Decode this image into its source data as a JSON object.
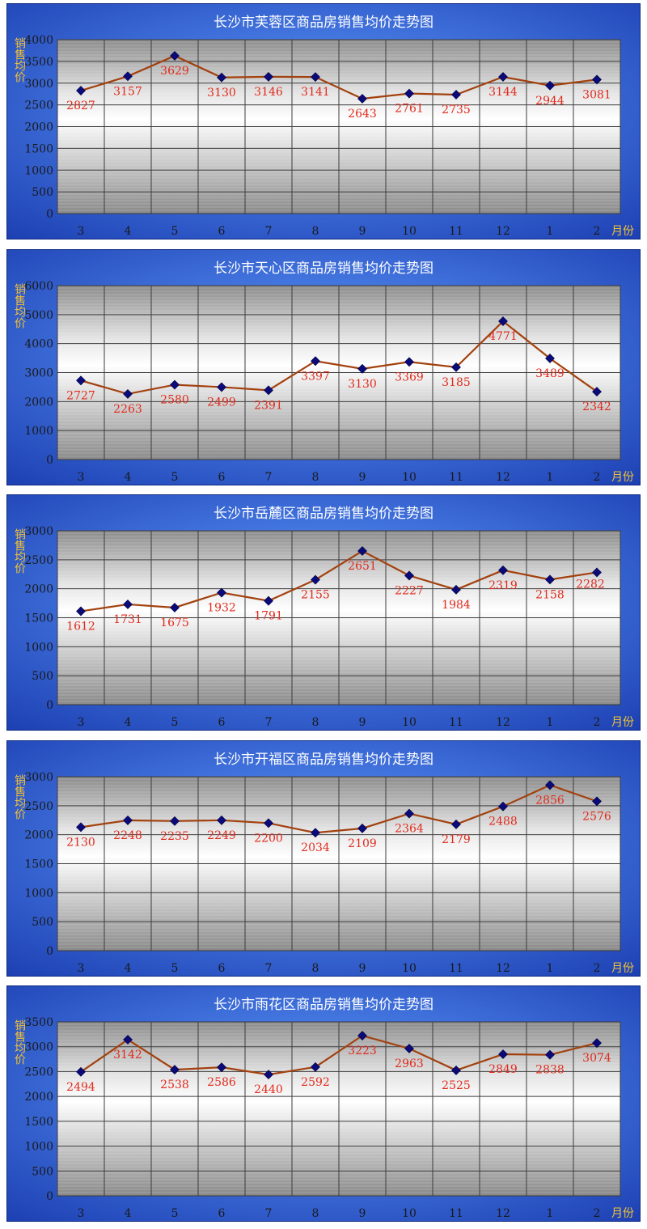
{
  "axis_unit_x": "月份",
  "axis_label_y": "销售均价",
  "colors": {
    "frame_dark": "#1c3fb2",
    "frame_light": "#5f9cff",
    "line": "#a3410e",
    "marker": "#0a0a78",
    "value_label": "#e22a1c",
    "title_text": "#ffffff",
    "axis_label": "#f2c233",
    "tick_text": "#1a1a1a"
  },
  "chart_data": [
    {
      "type": "line",
      "title": "长沙市芙蓉区商品房销售均价走势图",
      "categories": [
        "3",
        "4",
        "5",
        "6",
        "7",
        "8",
        "9",
        "10",
        "11",
        "12",
        "1",
        "2"
      ],
      "values": [
        2827,
        3157,
        3629,
        3130,
        3146,
        3141,
        2643,
        2761,
        2735,
        3144,
        2944,
        3081
      ],
      "label_pos": [
        "below",
        "below",
        "below",
        "below",
        "below",
        "below",
        "below",
        "below",
        "below",
        "below",
        "below",
        "below"
      ],
      "ylim": [
        0,
        4000
      ],
      "yticks": [
        "0",
        "500",
        "1000",
        "1500",
        "2000",
        "2500",
        "3000",
        "3500",
        "4000"
      ],
      "xlabel": "月份",
      "ylabel": "销售均价"
    },
    {
      "type": "line",
      "title": "长沙市天心区商品房销售均价走势图",
      "categories": [
        "3",
        "4",
        "5",
        "6",
        "7",
        "8",
        "9",
        "10",
        "11",
        "12",
        "1",
        "2"
      ],
      "values": [
        2727,
        2263,
        2580,
        2499,
        2391,
        3397,
        3130,
        3369,
        3185,
        4771,
        3489,
        2342
      ],
      "label_pos": [
        "below",
        "below",
        "below",
        "below",
        "below",
        "below",
        "below",
        "below",
        "below",
        "below",
        "below",
        "below"
      ],
      "ylim": [
        0,
        6000
      ],
      "yticks": [
        "0",
        "1000",
        "2000",
        "3000",
        "4000",
        "5000",
        "6000"
      ],
      "xlabel": "月份",
      "ylabel": "销售均价"
    },
    {
      "type": "line",
      "title": "长沙市岳麓区商品房销售均价走势图",
      "categories": [
        "3",
        "4",
        "5",
        "6",
        "7",
        "8",
        "9",
        "10",
        "11",
        "12",
        "1",
        "2"
      ],
      "values": [
        1612,
        1731,
        1675,
        1932,
        1791,
        2155,
        2651,
        2227,
        1984,
        2319,
        2158,
        2282
      ],
      "label_pos": [
        "below",
        "below",
        "below",
        "below",
        "below",
        "below",
        "below",
        "below",
        "below",
        "below",
        "below",
        "right"
      ],
      "ylim": [
        0,
        3000
      ],
      "yticks": [
        "0",
        "500",
        "1000",
        "1500",
        "2000",
        "2500",
        "3000"
      ],
      "xlabel": "月份",
      "ylabel": "销售均价"
    },
    {
      "type": "line",
      "title": "长沙市开福区商品房销售均价走势图",
      "categories": [
        "3",
        "4",
        "5",
        "6",
        "7",
        "8",
        "9",
        "10",
        "11",
        "12",
        "1",
        "2"
      ],
      "values": [
        2130,
        2248,
        2235,
        2249,
        2200,
        2034,
        2109,
        2364,
        2179,
        2488,
        2856,
        2576
      ],
      "label_pos": [
        "below",
        "below",
        "below",
        "below",
        "below",
        "below",
        "below",
        "below",
        "below",
        "below",
        "below",
        "below"
      ],
      "ylim": [
        0,
        3000
      ],
      "yticks": [
        "0",
        "500",
        "1000",
        "1500",
        "2000",
        "2500",
        "3000"
      ],
      "xlabel": "月份",
      "ylabel": "销售均价"
    },
    {
      "type": "line",
      "title": "长沙市雨花区商品房销售均价走势图",
      "categories": [
        "3",
        "4",
        "5",
        "6",
        "7",
        "8",
        "9",
        "10",
        "11",
        "12",
        "1",
        "2"
      ],
      "values": [
        2494,
        3142,
        2538,
        2586,
        2440,
        2592,
        3223,
        2963,
        2525,
        2849,
        2838,
        3074
      ],
      "label_pos": [
        "below",
        "below",
        "below",
        "below",
        "below",
        "below",
        "below",
        "below",
        "below",
        "below",
        "below",
        "below"
      ],
      "ylim": [
        0,
        3500
      ],
      "yticks": [
        "0",
        "500",
        "1000",
        "1500",
        "2000",
        "2500",
        "3000",
        "3500"
      ],
      "xlabel": "月份",
      "ylabel": "销售均价"
    }
  ]
}
